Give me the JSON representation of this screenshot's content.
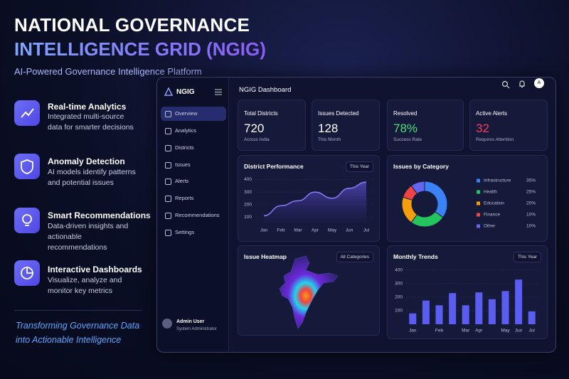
{
  "header": {
    "title_line1": "NATIONAL GOVERNANCE",
    "title_line2": "INTELLIGENCE GRID (NGIG)",
    "subtitle": "AI-Powered Governance Intelligence Platform"
  },
  "features": [
    {
      "title": "Real-time Analytics",
      "description": "Integrated multi-source data for smarter decisions"
    },
    {
      "title": "Anomaly Detection",
      "description": "AI models identify patterns and potential issues"
    },
    {
      "title": "Smart Recommendations",
      "description": "Data-driven insights and actionable recommendations"
    },
    {
      "title": "Interactive Dashboards",
      "description": "Visualize, analyze and monitor key metrics"
    }
  ],
  "tagline": "Transforming Governance Data into Actionable Intelligence",
  "dashboard": {
    "logo": "NGIG",
    "title": "NGIG Dashboard",
    "avatar": "A",
    "nav": [
      "Overview",
      "Analytics",
      "Districts",
      "Issues",
      "Alerts",
      "Reports",
      "Recommendations",
      "Settings"
    ],
    "user": {
      "name": "Admin User",
      "role": "System Administrator"
    },
    "cards": [
      {
        "label": "Total Districts",
        "value": 720,
        "note": "Across India"
      },
      {
        "label": "Issues Detected",
        "value": 128,
        "note": "This Month"
      },
      {
        "label": "Resolved",
        "value": "78%",
        "note": "Success Rate"
      },
      {
        "label": "Active Alerts",
        "value": 32,
        "note": "Requires Attention"
      }
    ],
    "heatmap": {
      "title": "Issue Heatmap",
      "filter": "All Categories"
    }
  },
  "chart_data": [
    {
      "type": "line",
      "title": "District Performance",
      "filter": "This Year",
      "categories": [
        "Jan",
        "Feb",
        "Mar",
        "Apr",
        "May",
        "Jun",
        "Jul"
      ],
      "values": [
        110,
        190,
        230,
        300,
        250,
        330,
        380
      ],
      "color": "#8b7cf6",
      "ylim": [
        50,
        420
      ],
      "yticks": [
        100,
        200,
        300,
        400
      ]
    },
    {
      "type": "pie",
      "title": "Issues by Category",
      "categories": [
        "Infrastructure",
        "Health",
        "Education",
        "Finance",
        "Other"
      ],
      "values": [
        35,
        25,
        20,
        10,
        10
      ],
      "value_labels": [
        "35%",
        "25%",
        "20%",
        "10%",
        "10%"
      ],
      "colors": [
        "#3b82f6",
        "#22c55e",
        "#f59e0b",
        "#ef4444",
        "#6366f1"
      ]
    },
    {
      "type": "bar",
      "title": "Monthly Trends",
      "filter": "This Year",
      "categories": [
        "Jan",
        null,
        "Feb",
        null,
        "Mar",
        "Apr",
        null,
        "May",
        "Jun",
        "Jul"
      ],
      "values": [
        80,
        175,
        140,
        230,
        140,
        235,
        185,
        245,
        330,
        95
      ],
      "color": "#5b5cf0",
      "ylim": [
        0,
        420
      ],
      "yticks": [
        100,
        200,
        300,
        400
      ]
    }
  ]
}
